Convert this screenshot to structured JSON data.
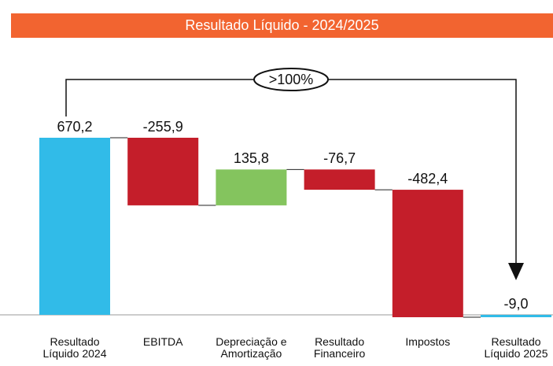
{
  "chart_data": {
    "type": "waterfall",
    "title": "Resultado Líquido - 2024/2025",
    "categories": [
      "Resultado Líquido 2024",
      "EBITDA",
      "Depreciação e Amortização",
      "Resultado Financeiro",
      "Impostos",
      "Resultado Líquido 2025"
    ],
    "values": [
      670.2,
      -255.9,
      135.8,
      -76.7,
      -482.4,
      -9.0
    ],
    "value_labels": [
      "670,2",
      "-255,9",
      "135,8",
      "-76,7",
      "-482,4",
      "-9,0"
    ],
    "totals": [
      true,
      false,
      false,
      false,
      false,
      true
    ],
    "colors": [
      "#31bbe8",
      "#c41e2a",
      "#84c45e",
      "#c41e2a",
      "#c41e2a",
      "#31bbe8"
    ],
    "annotation": ">100%"
  }
}
